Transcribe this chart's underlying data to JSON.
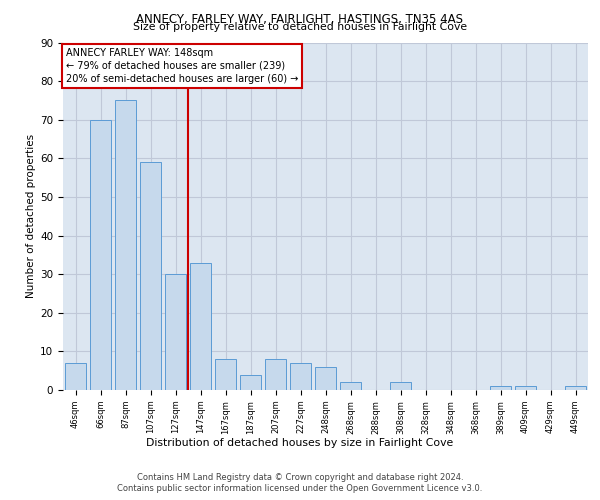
{
  "title1": "ANNECY, FARLEY WAY, FAIRLIGHT, HASTINGS, TN35 4AS",
  "title2": "Size of property relative to detached houses in Fairlight Cove",
  "xlabel": "Distribution of detached houses by size in Fairlight Cove",
  "ylabel": "Number of detached properties",
  "categories": [
    "46sqm",
    "66sqm",
    "87sqm",
    "107sqm",
    "127sqm",
    "147sqm",
    "167sqm",
    "187sqm",
    "207sqm",
    "227sqm",
    "248sqm",
    "268sqm",
    "288sqm",
    "308sqm",
    "328sqm",
    "348sqm",
    "368sqm",
    "389sqm",
    "409sqm",
    "429sqm",
    "449sqm"
  ],
  "values": [
    7,
    70,
    75,
    59,
    30,
    33,
    8,
    4,
    8,
    7,
    6,
    2,
    0,
    2,
    0,
    0,
    0,
    1,
    1,
    0,
    1
  ],
  "bar_color": "#c6d9ec",
  "bar_edge_color": "#5b9bd5",
  "annotation_text_line1": "ANNECY FARLEY WAY: 148sqm",
  "annotation_text_line2": "← 79% of detached houses are smaller (239)",
  "annotation_text_line3": "20% of semi-detached houses are larger (60) →",
  "annotation_box_color": "#ffffff",
  "annotation_box_edge": "#cc0000",
  "vline_color": "#cc0000",
  "vline_x": 4.5,
  "ylim": [
    0,
    90
  ],
  "yticks": [
    0,
    10,
    20,
    30,
    40,
    50,
    60,
    70,
    80,
    90
  ],
  "grid_color": "#c0c8d8",
  "background_color": "#dce6f1",
  "footer": "Contains HM Land Registry data © Crown copyright and database right 2024.\nContains public sector information licensed under the Open Government Licence v3.0."
}
